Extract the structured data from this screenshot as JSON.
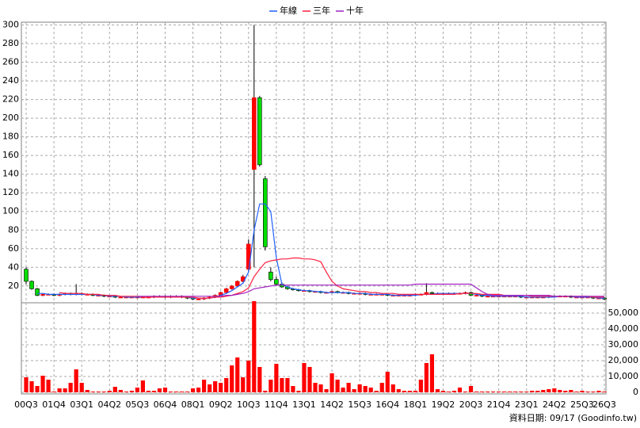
{
  "chart_data": {
    "type": "candlestick",
    "categories": [
      "00Q3",
      null,
      null,
      null,
      null,
      "01Q4",
      null,
      null,
      null,
      null,
      "03Q1",
      null,
      null,
      null,
      null,
      "04Q2",
      null,
      null,
      null,
      null,
      "05Q3",
      null,
      null,
      null,
      null,
      "06Q4",
      null,
      null,
      null,
      null,
      "08Q1",
      null,
      null,
      null,
      null,
      "09Q2",
      null,
      null,
      null,
      null,
      "10Q3",
      null,
      null,
      null,
      null,
      "11Q4",
      null,
      null,
      null,
      null,
      "13Q1",
      null,
      null,
      null,
      null,
      "14Q2",
      null,
      null,
      null,
      null,
      "15Q3",
      null,
      null,
      null,
      null,
      "16Q4",
      null,
      null,
      null,
      null,
      "18Q1",
      null,
      null,
      null,
      null,
      "19Q2",
      null,
      null,
      null,
      null,
      "20Q3",
      null,
      null,
      null,
      null,
      "21Q4",
      null,
      null,
      null,
      null,
      "23Q1",
      null,
      null,
      null,
      null,
      "24Q2",
      null,
      null,
      null,
      null,
      "25Q3",
      null,
      null,
      null,
      "26Q3"
    ],
    "open": [
      38,
      25,
      17,
      10,
      11,
      11,
      10,
      11,
      12,
      11,
      12,
      11,
      11,
      10,
      10,
      9,
      9,
      8,
      8,
      8,
      8,
      8,
      8,
      8,
      9,
      9,
      8,
      9,
      9,
      8,
      7,
      6,
      6,
      7,
      8,
      10,
      13,
      17,
      20,
      25,
      38,
      145,
      222,
      135,
      35,
      27,
      22,
      19,
      17,
      16,
      15,
      15,
      14,
      14,
      13,
      13,
      14,
      13,
      13,
      12,
      12,
      12,
      11,
      11,
      11,
      11,
      10,
      10,
      10,
      10,
      10,
      11,
      11,
      13,
      12,
      12,
      12,
      12,
      12,
      12,
      13,
      10,
      10,
      9,
      9,
      9,
      9,
      9,
      9,
      9,
      8,
      8,
      8,
      8,
      8,
      9,
      9,
      9,
      9,
      8,
      8,
      8,
      8,
      7,
      7
    ],
    "high": [
      40,
      26,
      18,
      12,
      12,
      12,
      12,
      13,
      13,
      22,
      13,
      12,
      12,
      11,
      11,
      10,
      10,
      9,
      9,
      9,
      9,
      9,
      9,
      10,
      10,
      10,
      10,
      10,
      10,
      9,
      8,
      7,
      8,
      9,
      11,
      14,
      18,
      21,
      26,
      32,
      70,
      300,
      224,
      138,
      40,
      30,
      24,
      20,
      18,
      17,
      16,
      16,
      15,
      15,
      14,
      15,
      15,
      14,
      14,
      13,
      13,
      13,
      12,
      12,
      12,
      12,
      11,
      11,
      11,
      11,
      12,
      12,
      23,
      14,
      13,
      13,
      13,
      13,
      13,
      14,
      14,
      11,
      11,
      10,
      10,
      10,
      10,
      10,
      10,
      10,
      9,
      9,
      9,
      9,
      10,
      10,
      10,
      10,
      10,
      9,
      9,
      9,
      9,
      8,
      8
    ],
    "low": [
      22,
      16,
      9,
      9,
      10,
      9,
      9,
      10,
      10,
      10,
      10,
      10,
      9,
      9,
      8,
      8,
      7,
      7,
      7,
      7,
      7,
      7,
      7,
      7,
      8,
      7,
      7,
      8,
      7,
      6,
      5,
      5,
      5,
      6,
      7,
      9,
      12,
      16,
      19,
      24,
      35,
      40,
      148,
      58,
      25,
      20,
      18,
      16,
      15,
      14,
      14,
      13,
      13,
      12,
      12,
      12,
      12,
      12,
      11,
      11,
      11,
      10,
      10,
      10,
      10,
      9,
      9,
      9,
      9,
      9,
      9,
      10,
      10,
      11,
      11,
      11,
      11,
      11,
      11,
      11,
      9,
      9,
      8,
      8,
      8,
      8,
      8,
      8,
      8,
      7,
      7,
      7,
      7,
      7,
      7,
      8,
      8,
      8,
      7,
      7,
      7,
      7,
      6,
      6,
      5
    ],
    "close": [
      25,
      17,
      10,
      11,
      11,
      10,
      11,
      12,
      11,
      12,
      11,
      11,
      10,
      10,
      9,
      9,
      8,
      8,
      8,
      8,
      8,
      8,
      8,
      9,
      9,
      8,
      9,
      9,
      8,
      7,
      6,
      6,
      7,
      8,
      10,
      13,
      17,
      20,
      25,
      30,
      65,
      222,
      150,
      62,
      27,
      22,
      19,
      17,
      16,
      15,
      15,
      14,
      14,
      13,
      13,
      14,
      13,
      13,
      12,
      12,
      12,
      11,
      11,
      11,
      11,
      10,
      10,
      10,
      10,
      10,
      11,
      11,
      13,
      12,
      12,
      12,
      12,
      12,
      12,
      13,
      10,
      10,
      9,
      9,
      9,
      9,
      9,
      9,
      9,
      8,
      8,
      8,
      8,
      8,
      9,
      9,
      9,
      9,
      8,
      8,
      8,
      8,
      7,
      7,
      6
    ],
    "up_color": "#ff0000",
    "down_color": "#00dd00",
    "series": [
      {
        "name": "年線",
        "color": "#2060ff",
        "values": [
          null,
          null,
          12,
          12,
          11,
          11,
          11,
          11,
          11,
          11,
          11,
          11,
          11,
          10,
          10,
          9,
          9,
          9,
          8,
          8,
          8,
          8,
          8,
          8,
          8,
          8,
          8,
          8,
          8,
          8,
          7,
          7,
          7,
          7,
          8,
          10,
          12,
          15,
          19,
          23,
          35,
          80,
          108,
          108,
          100,
          50,
          22,
          19,
          17,
          16,
          15,
          15,
          14,
          14,
          13,
          13,
          13,
          13,
          13,
          12,
          12,
          12,
          11,
          11,
          11,
          11,
          10,
          10,
          10,
          10,
          10,
          11,
          11,
          11,
          12,
          12,
          12,
          12,
          12,
          12,
          12,
          11,
          10,
          10,
          9,
          9,
          9,
          9,
          9,
          9,
          8,
          8,
          8,
          8,
          8,
          8,
          9,
          9,
          9,
          8,
          8,
          8,
          8,
          7,
          7
        ]
      },
      {
        "name": "三年",
        "color": "#ff2040",
        "values": [
          null,
          null,
          null,
          null,
          null,
          null,
          13,
          12,
          12,
          12,
          12,
          11,
          11,
          11,
          10,
          10,
          10,
          9,
          9,
          9,
          9,
          8,
          8,
          8,
          8,
          8,
          8,
          8,
          8,
          8,
          8,
          7,
          7,
          7,
          8,
          8,
          9,
          10,
          12,
          14,
          18,
          30,
          38,
          45,
          47,
          48,
          49,
          49,
          50,
          50,
          49,
          49,
          48,
          46,
          35,
          25,
          20,
          17,
          16,
          15,
          14,
          14,
          13,
          13,
          12,
          12,
          12,
          11,
          11,
          11,
          11,
          11,
          11,
          11,
          11,
          11,
          11,
          11,
          12,
          12,
          12,
          12,
          11,
          11,
          11,
          11,
          10,
          10,
          10,
          10,
          10,
          9,
          9,
          9,
          9,
          9,
          9,
          9,
          9,
          9,
          9,
          9,
          8,
          8,
          8
        ]
      },
      {
        "name": "十年",
        "color": "#a020c0",
        "values": [
          null,
          null,
          null,
          null,
          null,
          null,
          null,
          null,
          null,
          null,
          null,
          null,
          null,
          null,
          null,
          null,
          null,
          null,
          null,
          null,
          9,
          9,
          9,
          9,
          9,
          9,
          9,
          9,
          9,
          9,
          9,
          9,
          9,
          9,
          9,
          9,
          10,
          10,
          11,
          12,
          14,
          17,
          18,
          19,
          20,
          21,
          21,
          21,
          21,
          21,
          21,
          21,
          21,
          21,
          21,
          21,
          21,
          21,
          21,
          21,
          21,
          21,
          21,
          21,
          21,
          21,
          21,
          21,
          21,
          21,
          22,
          22,
          22,
          22,
          22,
          22,
          22,
          22,
          22,
          22,
          22,
          18,
          14,
          11,
          10,
          10,
          10,
          10,
          10,
          10,
          10,
          10,
          10,
          10,
          10,
          9,
          9,
          9,
          9,
          9,
          9,
          9,
          9,
          9,
          9
        ]
      }
    ],
    "volume": {
      "color": "#ff0000",
      "values": [
        9500,
        7000,
        4000,
        10500,
        8000,
        500,
        2500,
        2500,
        6000,
        14500,
        6000,
        1500,
        500,
        500,
        500,
        1000,
        3500,
        1500,
        500,
        1000,
        3000,
        7500,
        1000,
        1000,
        2500,
        3000,
        500,
        500,
        500,
        500,
        2500,
        3000,
        8000,
        5000,
        7000,
        6000,
        9000,
        17000,
        22000,
        9500,
        20000,
        57500,
        16000,
        1000,
        8000,
        18000,
        9000,
        9000,
        4000,
        1000,
        18500,
        16000,
        6000,
        5000,
        2000,
        12000,
        8000,
        3000,
        6000,
        2000,
        5000,
        4000,
        3000,
        1000,
        6000,
        13000,
        5000,
        2000,
        1000,
        1000,
        1000,
        8000,
        18500,
        24000,
        2000,
        1000,
        500,
        1000,
        3000,
        500,
        4000,
        500,
        500,
        500,
        500,
        500,
        500,
        500,
        500,
        500,
        500,
        1000,
        1000,
        1500,
        2000,
        2500,
        1500,
        1000,
        1500,
        500,
        1000,
        500,
        500,
        1000,
        500
      ]
    },
    "ylim": [
      2,
      303
    ],
    "yticks": [
      20,
      40,
      60,
      80,
      100,
      120,
      140,
      160,
      180,
      200,
      220,
      240,
      260,
      280,
      300
    ],
    "y2lim": [
      -1000,
      56500
    ],
    "y2ticks": [
      0,
      {
        "value": 10000,
        "label": "10,000"
      },
      {
        "value": 20000,
        "label": "20,000"
      },
      {
        "value": 30000,
        "label": "30,000"
      },
      {
        "value": 40000,
        "label": "40,000"
      },
      {
        "value": 50000,
        "label": "50,000"
      }
    ],
    "grid": true,
    "footer": "資料日期: 09/17 (Goodinfo.tw)"
  }
}
